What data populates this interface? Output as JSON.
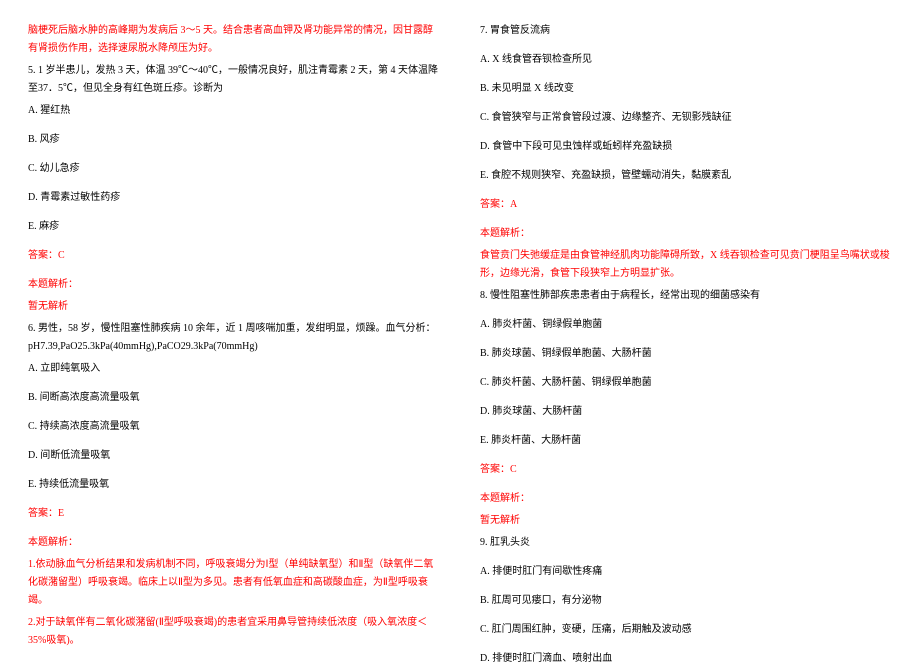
{
  "colors": {
    "text": "#000000",
    "red": "#ff0000",
    "bg": "#ffffff"
  },
  "left": {
    "intro": "脑梗死后脑水肿的高峰期为发病后 3～5 天。结合患者高血钾及肾功能异常的情况，因甘露醇有肾损伤作用，选择速尿脱水降颅压为好。",
    "q5": {
      "stem": "5. 1 岁半患儿，发热 3 天，体温 39℃～40℃，一般情况良好，肌注青霉素 2 天，第 4 天体温降至37．5℃，但见全身有红色斑丘疹。诊断为",
      "A": "A. 猩红热",
      "B": "B. 风疹",
      "C": "C. 幼儿急疹",
      "D": "D. 青霉素过敏性药疹",
      "E": "E. 麻疹",
      "ans": "答案：C",
      "exph": "本题解析：",
      "expb": "暂无解析"
    },
    "q6": {
      "stem": "6. 男性，58 岁，慢性阻塞性肺疾病 10 余年，近 1 周咳喘加重，发绀明显，烦躁。血气分析：pH7.39,PaO25.3kPa(40mmHg),PaCO29.3kPa(70mmHg)",
      "A": "A. 立即纯氧吸入",
      "B": "B. 间断高浓度高流量吸氧",
      "C": "C. 持续高浓度高流量吸氧",
      "D": "D. 间断低流量吸氧",
      "E": "E. 持续低流量吸氧",
      "ans": "答案：E",
      "exph": "本题解析：",
      "exp1": "1.依动脉血气分析结果和发病机制不同，呼吸衰竭分为Ⅰ型（单纯缺氧型）和Ⅱ型（缺氧伴二氧化碳潴留型）呼吸衰竭。临床上以Ⅱ型为多见。患者有低氧血症和高碳酸血症，为Ⅱ型呼吸衰竭。",
      "exp2": "2.对于缺氧伴有二氧化碳潴留(Ⅱ型呼吸衰竭)的患者宜采用鼻导管持续低浓度（吸入氧浓度＜35%吸氧)。"
    }
  },
  "right": {
    "q7": {
      "title": "7. 胃食管反流病",
      "A": "A. X 线食管吞钡检查所见",
      "B": "B. 未见明显 X 线改变",
      "C": "C. 食管狭窄与正常食管段过渡、边缘整齐、无钡影残缺征",
      "D": "D. 食管中下段可见虫蚀样或蚯蚓样充盈缺损",
      "E": "E. 食腔不规则狭窄、充盈缺损，管壁蠕动消失，黏膜紊乱",
      "ans": "答案：A",
      "exph": "本题解析：",
      "expb": "食管贲门失弛缓症是由食管神经肌肉功能障碍所致，X 线吞钡检查可见贲门梗阻呈鸟嘴状或梭形，边缘光滑，食管下段狭窄上方明显扩张。"
    },
    "q8": {
      "title": "8. 慢性阻塞性肺部疾患患者由于病程长，经常出现的细菌感染有",
      "A": "A. 肺炎杆菌、铜绿假单胞菌",
      "B": "B. 肺炎球菌、铜绿假单胞菌、大肠杆菌",
      "C": "C. 肺炎杆菌、大肠杆菌、铜绿假单胞菌",
      "D": "D. 肺炎球菌、大肠杆菌",
      "E": "E. 肺炎杆菌、大肠杆菌",
      "ans": "答案：C",
      "exph": "本题解析：",
      "expb": "暂无解析"
    },
    "q9": {
      "title": "9. 肛乳头炎",
      "A": "A. 排便时肛门有间歇性疼痛",
      "B": "B. 肛周可见瘘口，有分泌物",
      "C": "C. 肛门周围红肿，变硬，压痛，后期触及波动感",
      "D": "D. 排便时肛门滴血、喷射出血"
    }
  }
}
